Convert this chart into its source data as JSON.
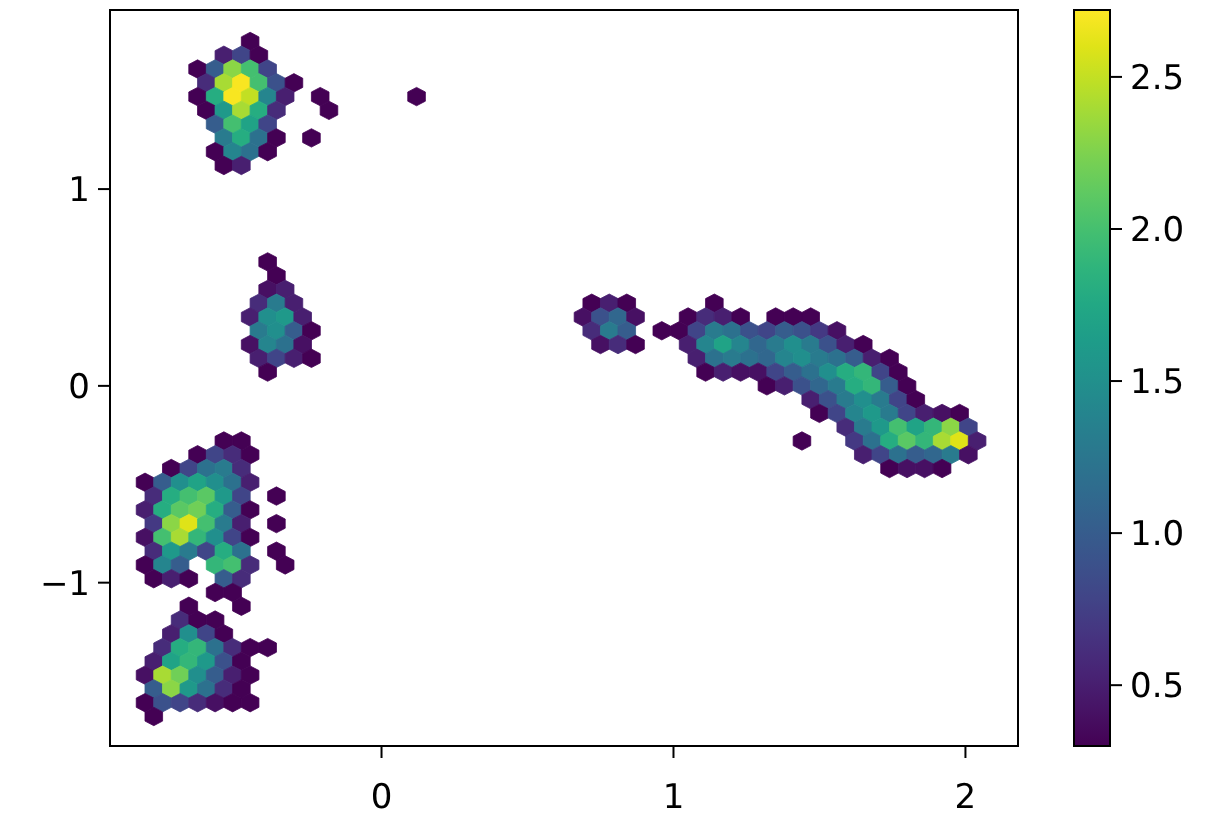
{
  "chart_data": {
    "type": "scatter",
    "xlim": [
      -0.93,
      2.18
    ],
    "ylim": [
      -1.83,
      1.91
    ],
    "xticks": [
      0,
      1,
      2
    ],
    "yticks": [
      {
        "value": -1,
        "label": "−1"
      },
      0,
      1
    ],
    "clim": [
      0.3,
      2.72
    ],
    "cticks": [
      0.5,
      {
        "value": 1,
        "label": "1.0"
      },
      1.5,
      {
        "value": 2,
        "label": "2.0"
      },
      2.5
    ],
    "x": [
      -0.45,
      -0.54,
      -0.48,
      -0.42,
      -0.63,
      -0.57,
      -0.51,
      -0.45,
      -0.39,
      -0.6,
      -0.54,
      -0.48,
      -0.42,
      -0.36,
      -0.3,
      -0.63,
      -0.57,
      -0.51,
      -0.45,
      -0.39,
      -0.33,
      -0.21,
      0.12,
      -0.6,
      -0.54,
      -0.48,
      -0.42,
      -0.36,
      -0.18,
      -0.57,
      -0.51,
      -0.45,
      -0.39,
      -0.54,
      -0.48,
      -0.42,
      -0.36,
      -0.24,
      -0.57,
      -0.51,
      -0.45,
      -0.39,
      -0.54,
      -0.48,
      -0.39,
      -0.36,
      -0.39,
      -0.33,
      -0.42,
      -0.36,
      -0.3,
      -0.45,
      -0.39,
      -0.33,
      -0.27,
      -0.42,
      -0.36,
      -0.3,
      -0.24,
      -0.45,
      -0.39,
      -0.33,
      -0.27,
      -0.42,
      -0.36,
      -0.3,
      -0.24,
      -0.39,
      0.72,
      0.78,
      0.84,
      0.69,
      0.75,
      0.81,
      0.87,
      0.72,
      0.78,
      0.84,
      0.75,
      0.81,
      0.87,
      1.14,
      1.05,
      1.11,
      1.17,
      1.23,
      1.35,
      1.41,
      1.47,
      0.96,
      1.02,
      1.08,
      1.14,
      1.2,
      1.26,
      1.32,
      1.38,
      1.44,
      1.5,
      1.56,
      1.05,
      1.11,
      1.17,
      1.23,
      1.29,
      1.35,
      1.41,
      1.47,
      1.53,
      1.59,
      1.65,
      1.08,
      1.14,
      1.2,
      1.26,
      1.32,
      1.38,
      1.44,
      1.5,
      1.56,
      1.62,
      1.68,
      1.74,
      1.11,
      1.17,
      1.23,
      1.29,
      1.35,
      1.41,
      1.47,
      1.53,
      1.59,
      1.65,
      1.71,
      1.77,
      1.32,
      1.38,
      1.44,
      1.5,
      1.56,
      1.62,
      1.68,
      1.74,
      1.8,
      1.47,
      1.53,
      1.59,
      1.65,
      1.71,
      1.77,
      1.83,
      1.5,
      1.56,
      1.62,
      1.68,
      1.74,
      1.8,
      1.86,
      1.92,
      1.98,
      1.59,
      1.65,
      1.71,
      1.77,
      1.83,
      1.89,
      1.95,
      2.01,
      1.44,
      1.62,
      1.68,
      1.74,
      1.8,
      1.86,
      1.92,
      1.98,
      2.04,
      1.65,
      1.71,
      1.77,
      1.83,
      1.89,
      1.95,
      2.01,
      1.74,
      1.8,
      1.86,
      1.92,
      -0.54,
      -0.48,
      -0.63,
      -0.57,
      -0.51,
      -0.45,
      -0.72,
      -0.66,
      -0.6,
      -0.54,
      -0.48,
      -0.81,
      -0.75,
      -0.69,
      -0.63,
      -0.57,
      -0.51,
      -0.45,
      -0.78,
      -0.72,
      -0.66,
      -0.6,
      -0.54,
      -0.48,
      -0.36,
      -0.81,
      -0.75,
      -0.69,
      -0.63,
      -0.57,
      -0.51,
      -0.45,
      -0.78,
      -0.72,
      -0.66,
      -0.6,
      -0.54,
      -0.48,
      -0.36,
      -0.81,
      -0.75,
      -0.69,
      -0.63,
      -0.57,
      -0.51,
      -0.45,
      -0.78,
      -0.72,
      -0.66,
      -0.6,
      -0.54,
      -0.48,
      -0.36,
      -0.81,
      -0.75,
      -0.69,
      -0.57,
      -0.51,
      -0.45,
      -0.33,
      -0.78,
      -0.72,
      -0.66,
      -0.54,
      -0.48,
      -0.57,
      -0.51,
      -0.66,
      -0.48,
      -0.69,
      -0.63,
      -0.57,
      -0.72,
      -0.66,
      -0.6,
      -0.54,
      -0.75,
      -0.69,
      -0.63,
      -0.57,
      -0.51,
      -0.45,
      -0.39,
      -0.78,
      -0.72,
      -0.66,
      -0.6,
      -0.54,
      -0.48,
      -0.81,
      -0.75,
      -0.69,
      -0.63,
      -0.57,
      -0.51,
      -0.45,
      -0.78,
      -0.72,
      -0.66,
      -0.6,
      -0.54,
      -0.48,
      -0.81,
      -0.75,
      -0.69,
      -0.63,
      -0.57,
      -0.51,
      -0.45,
      -0.78
    ],
    "values": [
      1.75,
      1.68,
      1.68,
      1.68,
      1.61,
      1.61,
      1.61,
      1.61,
      1.61,
      1.54,
      1.54,
      1.54,
      1.54,
      1.54,
      1.54,
      1.47,
      1.47,
      1.47,
      1.47,
      1.47,
      1.47,
      1.47,
      1.47,
      1.4,
      1.4,
      1.4,
      1.4,
      1.4,
      1.4,
      1.33,
      1.33,
      1.33,
      1.33,
      1.26,
      1.26,
      1.26,
      1.26,
      1.26,
      1.19,
      1.19,
      1.19,
      1.19,
      1.12,
      1.12,
      0.63,
      0.56,
      0.49,
      0.49,
      0.42,
      0.42,
      0.42,
      0.35,
      0.35,
      0.35,
      0.35,
      0.28,
      0.28,
      0.28,
      0.28,
      0.21,
      0.21,
      0.21,
      0.21,
      0.14,
      0.14,
      0.14,
      0.14,
      0.07,
      0.42,
      0.42,
      0.42,
      0.35,
      0.35,
      0.35,
      0.35,
      0.28,
      0.28,
      0.28,
      0.21,
      0.21,
      0.21,
      0.42,
      0.35,
      0.35,
      0.35,
      0.35,
      0.35,
      0.35,
      0.35,
      0.28,
      0.28,
      0.28,
      0.28,
      0.28,
      0.28,
      0.28,
      0.28,
      0.28,
      0.28,
      0.28,
      0.21,
      0.21,
      0.21,
      0.21,
      0.21,
      0.21,
      0.21,
      0.21,
      0.21,
      0.21,
      0.21,
      0.14,
      0.14,
      0.14,
      0.14,
      0.14,
      0.14,
      0.14,
      0.14,
      0.14,
      0.14,
      0.14,
      0.14,
      0.07,
      0.07,
      0.07,
      0.07,
      0.07,
      0.07,
      0.07,
      0.07,
      0.07,
      0.07,
      0.07,
      0.07,
      0,
      0,
      0,
      0,
      0,
      0,
      0,
      0,
      0,
      -0.07,
      -0.07,
      -0.07,
      -0.07,
      -0.07,
      -0.07,
      -0.07,
      -0.14,
      -0.14,
      -0.14,
      -0.14,
      -0.14,
      -0.14,
      -0.14,
      -0.14,
      -0.14,
      -0.21,
      -0.21,
      -0.21,
      -0.21,
      -0.21,
      -0.21,
      -0.21,
      -0.21,
      -0.28,
      -0.28,
      -0.28,
      -0.28,
      -0.28,
      -0.28,
      -0.28,
      -0.28,
      -0.28,
      -0.35,
      -0.35,
      -0.35,
      -0.35,
      -0.35,
      -0.35,
      -0.35,
      -0.42,
      -0.42,
      -0.42,
      -0.42,
      -0.28,
      -0.28,
      -0.35,
      -0.35,
      -0.35,
      -0.35,
      -0.42,
      -0.42,
      -0.42,
      -0.42,
      -0.42,
      -0.49,
      -0.49,
      -0.49,
      -0.49,
      -0.49,
      -0.49,
      -0.49,
      -0.56,
      -0.56,
      -0.56,
      -0.56,
      -0.56,
      -0.56,
      -0.56,
      -0.63,
      -0.63,
      -0.63,
      -0.63,
      -0.63,
      -0.63,
      -0.63,
      -0.7,
      -0.7,
      -0.7,
      -0.7,
      -0.7,
      -0.7,
      -0.7,
      -0.77,
      -0.77,
      -0.77,
      -0.77,
      -0.77,
      -0.77,
      -0.77,
      -0.84,
      -0.84,
      -0.84,
      -0.84,
      -0.84,
      -0.84,
      -0.84,
      -0.91,
      -0.91,
      -0.91,
      -0.91,
      -0.91,
      -0.91,
      -0.91,
      -0.98,
      -0.98,
      -0.98,
      -0.98,
      -0.98,
      -1.05,
      -1.05,
      -1.12,
      -1.12,
      -1.19,
      -1.19,
      -1.19,
      -1.26,
      -1.26,
      -1.26,
      -1.26,
      -1.33,
      -1.33,
      -1.33,
      -1.33,
      -1.33,
      -1.33,
      -1.33,
      -1.4,
      -1.4,
      -1.4,
      -1.4,
      -1.4,
      -1.4,
      -1.47,
      -1.47,
      -1.47,
      -1.47,
      -1.47,
      -1.47,
      -1.47,
      -1.54,
      -1.54,
      -1.54,
      -1.54,
      -1.54,
      -1.54,
      -1.61,
      -1.61,
      -1.61,
      -1.61,
      -1.61,
      -1.61,
      -1.61,
      -1.68
    ],
    "cvalues": [
      0.3,
      0.5,
      0.8,
      0.3,
      0.3,
      1,
      2.3,
      2,
      0.8,
      0.6,
      2.4,
      2.7,
      2,
      0.9,
      0.3,
      0.3,
      1.8,
      2.7,
      2.5,
      1.4,
      0.5,
      0.3,
      0.3,
      0.3,
      1.6,
      2.4,
      1.8,
      0.6,
      0.3,
      1,
      2,
      1.7,
      0.8,
      1.3,
      1.8,
      1.2,
      0.3,
      0.3,
      0.3,
      1.4,
      1.2,
      0.3,
      0.3,
      0.5,
      0.3,
      0.3,
      0.4,
      0.5,
      0.6,
      1.3,
      0.5,
      0.5,
      1.5,
      1.6,
      0.5,
      1.3,
      1.5,
      1,
      0.3,
      0.4,
      1.4,
      1.2,
      0.4,
      0.5,
      0.8,
      0.5,
      0.3,
      0.3,
      0.3,
      0.5,
      0.3,
      0.4,
      0.9,
      1.1,
      0.4,
      0.6,
      1.3,
      1,
      0.4,
      0.6,
      0.3,
      0.3,
      0.3,
      0.6,
      0.5,
      0.3,
      0.3,
      0.3,
      0.3,
      0.3,
      0.3,
      0.8,
      1.3,
      1.2,
      0.9,
      0.8,
      1,
      0.9,
      0.7,
      0.4,
      0.5,
      1.4,
      1.7,
      1.4,
      1.1,
      1.3,
      1.5,
      1.3,
      0.9,
      0.5,
      0.3,
      0.5,
      1.2,
      1.3,
      1.2,
      1.1,
      1.4,
      1.5,
      1.3,
      1.2,
      1,
      0.5,
      0.3,
      0.3,
      0.5,
      0.4,
      0.4,
      0.8,
      1,
      1.2,
      1.5,
      1.8,
      1.9,
      0.8,
      0.3,
      0.3,
      0.5,
      0.9,
      1.1,
      1.3,
      1.8,
      1.9,
      1,
      0.3,
      0.5,
      0.9,
      1.3,
      1.5,
      1.3,
      0.8,
      0.3,
      0.3,
      0.8,
      1.4,
      1.6,
      1.3,
      0.8,
      0.5,
      0.4,
      0.3,
      0.6,
      1.3,
      1.6,
      2,
      1.7,
      1.9,
      2.3,
      0.8,
      0.3,
      0.7,
      1.2,
      1.8,
      2.1,
      1.9,
      2.4,
      2.6,
      0.5,
      0.5,
      0.8,
      1.2,
      1,
      1.1,
      1.3,
      0.4,
      0.3,
      0.4,
      0.4,
      0.3,
      0.3,
      0.3,
      0.3,
      0.8,
      0.6,
      0.3,
      0.3,
      0.8,
      1.2,
      1.3,
      0.6,
      0.3,
      1,
      1.5,
      1.7,
      1.5,
      1.2,
      0.5,
      0.6,
      1.8,
      2,
      2.1,
      1.6,
      0.8,
      0.3,
      0.5,
      1.8,
      2.1,
      2.2,
      1.8,
      1,
      0.3,
      0.7,
      2.3,
      2.6,
      2,
      1.3,
      0.5,
      0.3,
      0.4,
      2,
      2.4,
      1.9,
      1.5,
      0.8,
      0.3,
      0.6,
      1.6,
      1.3,
      0.8,
      1.8,
      1.2,
      0.3,
      0.3,
      1.4,
      1,
      1.9,
      2,
      0.6,
      0.3,
      0.3,
      0.5,
      0.3,
      1,
      0.6,
      0.3,
      0.3,
      0.3,
      0.3,
      0.6,
      0.3,
      0.3,
      0.5,
      1.5,
      0.8,
      0.3,
      0.6,
      1.8,
      1.9,
      1.2,
      0.6,
      0.3,
      0.3,
      0.5,
      1.7,
      1.9,
      1.6,
      0.9,
      0.3,
      0.4,
      2.4,
      2.2,
      1.5,
      1,
      0.5,
      0.3,
      1,
      2.3,
      1.6,
      1.2,
      0.6,
      0.3,
      0.3,
      0.9,
      0.8,
      0.6,
      0.4,
      0.3,
      0.3,
      0.3
    ]
  }
}
